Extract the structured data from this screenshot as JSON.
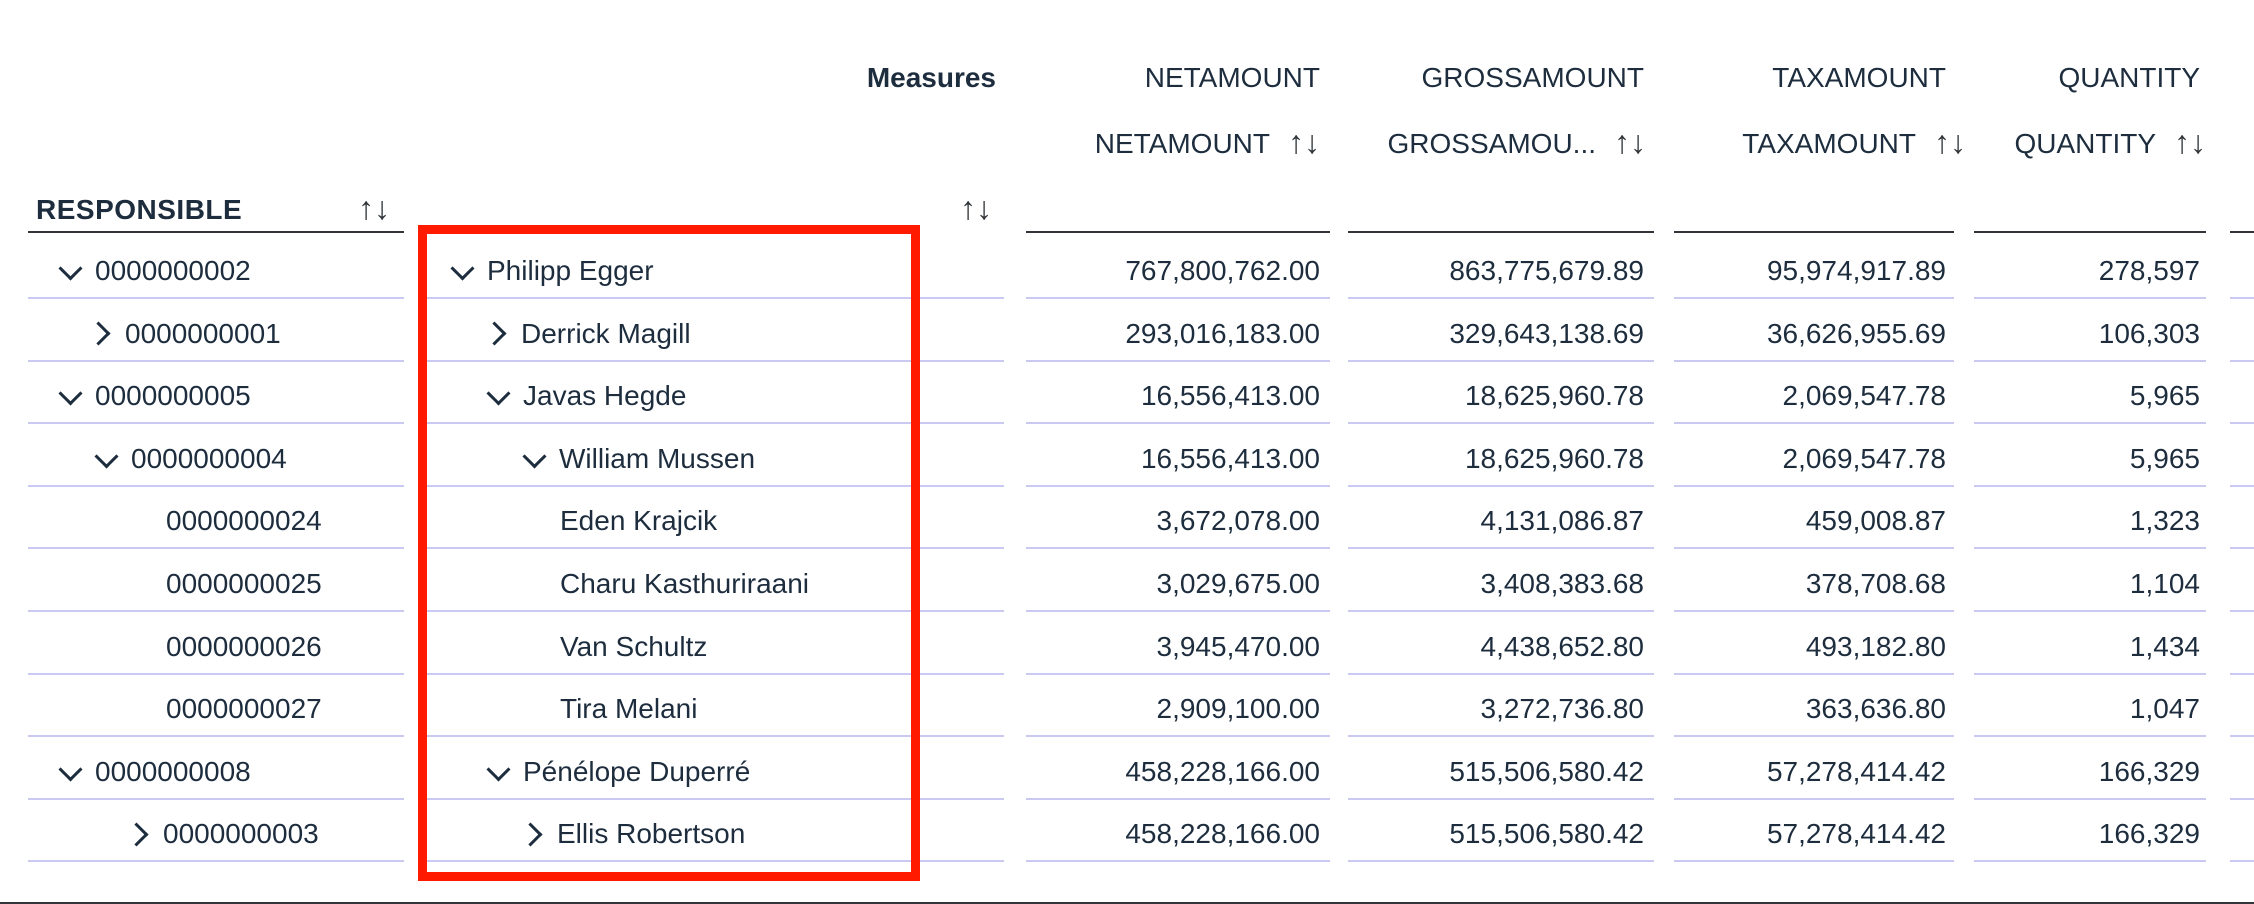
{
  "header": {
    "measures_label": "Measures",
    "columns": [
      {
        "top": "NETAMOUNT",
        "sub": "NETAMOUNT"
      },
      {
        "top": "GROSSAMOUNT",
        "sub": "GROSSAMOU..."
      },
      {
        "top": "TAXAMOUNT",
        "sub": "TAXAMOUNT"
      },
      {
        "top": "QUANTITY",
        "sub": "QUANTITY"
      }
    ],
    "responsible_label": "RESPONSIBLE",
    "sort_glyph": "↑↓"
  },
  "rows": [
    {
      "id": "0000000002",
      "id_state": "expanded",
      "name": "Philipp Egger",
      "name_state": "expanded",
      "values": [
        "767,800,762.00",
        "863,775,679.89",
        "95,974,917.89",
        "278,597"
      ]
    },
    {
      "id": "0000000001",
      "id_state": "collapsed",
      "name": "Derrick Magill",
      "name_state": "collapsed",
      "values": [
        "293,016,183.00",
        "329,643,138.69",
        "36,626,955.69",
        "106,303"
      ]
    },
    {
      "id": "0000000005",
      "id_state": "expanded",
      "name": "Javas Hegde",
      "name_state": "expanded",
      "values": [
        "16,556,413.00",
        "18,625,960.78",
        "2,069,547.78",
        "5,965"
      ]
    },
    {
      "id": "0000000004",
      "id_state": "expanded",
      "name": "William Mussen",
      "name_state": "expanded",
      "values": [
        "16,556,413.00",
        "18,625,960.78",
        "2,069,547.78",
        "5,965"
      ]
    },
    {
      "id": "0000000024",
      "id_state": "leaf",
      "name": "Eden Krajcik",
      "name_state": "leaf",
      "values": [
        "3,672,078.00",
        "4,131,086.87",
        "459,008.87",
        "1,323"
      ]
    },
    {
      "id": "0000000025",
      "id_state": "leaf",
      "name": "Charu Kasthuriraani",
      "name_state": "leaf",
      "values": [
        "3,029,675.00",
        "3,408,383.68",
        "378,708.68",
        "1,104"
      ]
    },
    {
      "id": "0000000026",
      "id_state": "leaf",
      "name": "Van Schultz",
      "name_state": "leaf",
      "values": [
        "3,945,470.00",
        "4,438,652.80",
        "493,182.80",
        "1,434"
      ]
    },
    {
      "id": "0000000027",
      "id_state": "leaf",
      "name": "Tira Melani",
      "name_state": "leaf",
      "values": [
        "2,909,100.00",
        "3,272,736.80",
        "363,636.80",
        "1,047"
      ]
    },
    {
      "id": "0000000008",
      "id_state": "expanded",
      "name": "Pénélope Duperré",
      "name_state": "expanded",
      "values": [
        "458,228,166.00",
        "515,506,580.42",
        "57,278,414.42",
        "166,329"
      ]
    },
    {
      "id": "0000000003",
      "id_state": "collapsed",
      "name": "Ellis Robertson",
      "name_state": "collapsed",
      "values": [
        "458,228,166.00",
        "515,506,580.42",
        "57,278,414.42",
        "166,329"
      ]
    }
  ],
  "highlight_color": "#ff1a00"
}
